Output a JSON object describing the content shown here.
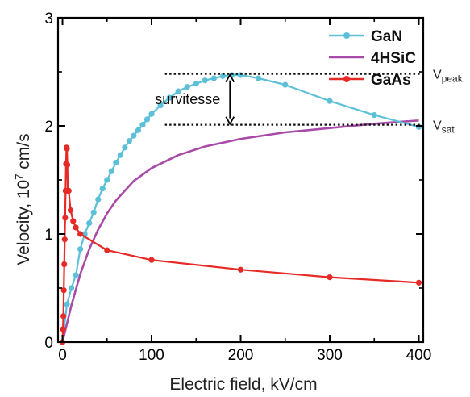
{
  "chart_data": {
    "type": "line",
    "xlabel": "Electric field, kV/cm",
    "ylabel_main": "Velocity, 10",
    "ylabel_exp": "7",
    "ylabel_unit": " cm/s",
    "xlim": [
      -5,
      405
    ],
    "ylim": [
      0,
      3
    ],
    "xticks": [
      0,
      100,
      200,
      300,
      400
    ],
    "yticks": [
      0,
      1,
      2,
      3
    ],
    "grid": false,
    "legend_position": "top-right",
    "series": [
      {
        "name": "GaN",
        "color": "#5bc0d8",
        "marker": "circle",
        "x": [
          0,
          5,
          10,
          15,
          20,
          25,
          30,
          35,
          40,
          45,
          50,
          55,
          60,
          65,
          70,
          75,
          80,
          85,
          90,
          95,
          100,
          110,
          120,
          130,
          140,
          150,
          160,
          170,
          180,
          190,
          200,
          220,
          250,
          300,
          350,
          400
        ],
        "y": [
          0,
          0.35,
          0.5,
          0.62,
          0.86,
          1.0,
          1.1,
          1.2,
          1.32,
          1.42,
          1.5,
          1.58,
          1.66,
          1.73,
          1.8,
          1.86,
          1.91,
          1.96,
          2.01,
          2.06,
          2.11,
          2.19,
          2.26,
          2.32,
          2.36,
          2.39,
          2.42,
          2.44,
          2.46,
          2.47,
          2.47,
          2.44,
          2.38,
          2.23,
          2.1,
          1.99
        ]
      },
      {
        "name": "4HSiC",
        "color": "#a84aa8",
        "marker": "none",
        "x": [
          0,
          10,
          20,
          30,
          40,
          50,
          60,
          80,
          100,
          130,
          160,
          200,
          250,
          300,
          350,
          400
        ],
        "y": [
          0,
          0.34,
          0.63,
          0.86,
          1.04,
          1.19,
          1.31,
          1.49,
          1.61,
          1.73,
          1.81,
          1.88,
          1.94,
          1.98,
          2.02,
          2.05
        ]
      },
      {
        "name": "GaAs",
        "color": "#e62a26",
        "marker": "circle",
        "x": [
          0,
          0.5,
          1,
          1.5,
          2,
          2.5,
          3,
          3.5,
          4,
          4.5,
          5,
          5.5,
          6,
          7,
          9,
          12,
          15,
          20,
          50,
          100,
          200,
          300,
          400
        ],
        "y": [
          0,
          0.12,
          0.24,
          0.48,
          0.72,
          0.95,
          1.15,
          1.4,
          1.65,
          1.8,
          1.79,
          1.64,
          1.4,
          1.4,
          1.22,
          1.12,
          1.06,
          1.0,
          0.85,
          0.76,
          0.67,
          0.6,
          0.55
        ]
      }
    ],
    "reference_lines": [
      {
        "label_main": "V",
        "label_sub": "peak",
        "y": 2.48,
        "x_start": 115,
        "x_end": 405
      },
      {
        "label_main": "V",
        "label_sub": "sat",
        "y": 2.01,
        "x_start": 115,
        "x_end": 405
      }
    ],
    "annotation": {
      "text": "survitesse",
      "arrow_x": 188,
      "y_top": 2.48,
      "y_bottom": 2.01
    }
  }
}
